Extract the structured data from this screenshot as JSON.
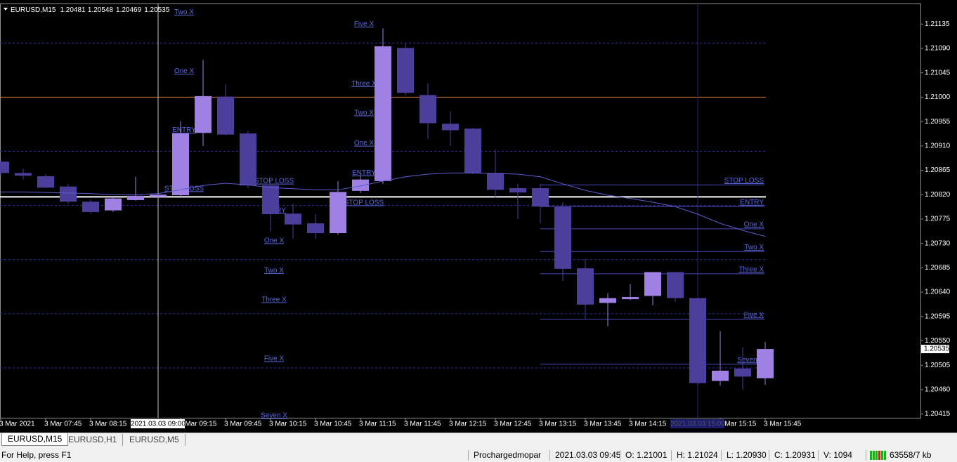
{
  "symbol": "EURUSD,M15",
  "chart_data": {
    "type": "candlestick",
    "categories": [
      "3 Mar 2021",
      null,
      "3 Mar 07:45",
      null,
      "3 Mar 08:15",
      null,
      null,
      "2021.03.03 09:00",
      "3 Mar 09:15",
      null,
      "3 Mar 09:45",
      null,
      "3 Mar 10:15",
      null,
      "3 Mar 10:45",
      null,
      "3 Mar 11:15",
      null,
      "3 Mar 11:45",
      null,
      "3 Mar 12:15",
      null,
      "3 Mar 12:45",
      null,
      "3 Mar 13:15",
      null,
      "3 Mar 13:45",
      null,
      "3 Mar 14:15",
      null,
      null,
      "2021.03.03 15:00",
      "3 Mar 15:15",
      null,
      "3 Mar 15:45"
    ],
    "open": [
      1.20881,
      1.2086,
      1.20854,
      1.20835,
      1.20807,
      1.20791,
      1.2081,
      1.20816,
      1.20819,
      1.20934,
      1.21001,
      1.20933,
      1.20837,
      1.20785,
      1.20767,
      1.20749,
      1.20827,
      1.20845,
      1.21091,
      1.21004,
      1.20951,
      1.20942,
      1.2086,
      1.20832,
      1.20832,
      1.20798,
      1.20684,
      1.2062,
      1.20627,
      1.20633,
      1.20677,
      1.20629,
      1.20476,
      1.20499,
      1.20481
    ],
    "high": [
      1.20884,
      1.20868,
      1.20858,
      1.2084,
      1.20811,
      1.20816,
      1.20853,
      1.20822,
      1.20956,
      1.21069,
      1.21024,
      1.20938,
      1.20848,
      1.20803,
      1.20784,
      1.20845,
      1.20855,
      1.21127,
      1.21099,
      1.21026,
      1.20974,
      1.20943,
      1.20904,
      1.2084,
      1.2084,
      1.20806,
      1.20702,
      1.20638,
      1.20655,
      1.20677,
      1.20677,
      1.20629,
      1.20568,
      1.20538,
      1.20548
    ],
    "low": [
      1.20855,
      1.20848,
      1.20832,
      1.20803,
      1.20785,
      1.20788,
      1.20809,
      1.20814,
      1.20816,
      1.2091,
      1.2093,
      1.20832,
      1.20752,
      1.20739,
      1.20739,
      1.20746,
      1.20823,
      1.2084,
      1.21003,
      1.20923,
      1.2091,
      1.20858,
      1.20814,
      1.20775,
      1.20767,
      1.20661,
      1.2059,
      1.20577,
      1.20625,
      1.20616,
      1.20622,
      1.20469,
      1.20467,
      1.2046,
      1.20469
    ],
    "close": [
      1.2086,
      1.20855,
      1.20833,
      1.20807,
      1.20788,
      1.20813,
      1.20818,
      1.2082,
      1.20933,
      1.21002,
      1.20931,
      1.20837,
      1.20784,
      1.20765,
      1.20749,
      1.20825,
      1.20848,
      1.21094,
      1.21008,
      1.20952,
      1.20939,
      1.2086,
      1.20829,
      1.20824,
      1.20798,
      1.20683,
      1.20617,
      1.20629,
      1.20631,
      1.20677,
      1.20629,
      1.20472,
      1.20495,
      1.20484,
      1.20535
    ],
    "up_color": "#9f80e3",
    "down_color": "#4c3f9c",
    "ma": [
      1.20825,
      1.20825,
      1.20824,
      1.20823,
      1.20822,
      1.2082,
      1.2082,
      1.20822,
      1.20829,
      1.20837,
      1.20841,
      1.20838,
      1.20833,
      1.20831,
      1.20829,
      1.20829,
      1.20836,
      1.20845,
      1.20853,
      1.20858,
      1.2086,
      1.2086,
      1.20859,
      1.20858,
      1.20853,
      1.2084,
      1.20828,
      1.20819,
      1.20813,
      1.20806,
      1.20798,
      1.20784,
      1.20767,
      1.20754,
      1.20743
    ],
    "ma_color": "#5c5ccc",
    "ylim": [
      1.20408,
      1.21173
    ],
    "yticks": [
      1.21135,
      {
        "value": 1.2109,
        "label": "1.21090"
      },
      1.21045,
      {
        "value": 1.21,
        "label": "1.21000"
      },
      1.20955,
      {
        "value": 1.2091,
        "label": "1.20910"
      },
      1.20865,
      {
        "value": 1.2082,
        "label": "1.20820"
      },
      1.20775,
      {
        "value": 1.2073,
        "label": "1.20730"
      },
      1.20685,
      {
        "value": 1.2064,
        "label": "1.20640"
      },
      1.20595,
      {
        "value": 1.2055,
        "label": "1.20550"
      },
      1.20505,
      {
        "value": 1.2046,
        "label": "1.20460"
      },
      1.20415
    ],
    "h_lines": [
      {
        "price": 1.211,
        "style": "dashed",
        "color": "#32328a"
      },
      {
        "price": 1.21,
        "style": "solid",
        "color": "#d0783a"
      },
      {
        "price": 1.209,
        "style": "dashed",
        "color": "#32328a"
      },
      {
        "price": 1.208,
        "style": "dashed",
        "color": "#32328a"
      },
      {
        "price": 1.207,
        "style": "dashed",
        "color": "#32328a"
      },
      {
        "price": 1.206,
        "style": "dashed",
        "color": "#32328a"
      },
      {
        "price": 1.205,
        "style": "dashed",
        "color": "#32328a"
      },
      {
        "price": 1.20816,
        "style": "thick",
        "color": "#ffffff"
      }
    ],
    "trade_levels": [
      {
        "label": "STOP LOSS",
        "price": 1.20838
      },
      {
        "label": "ENTRY",
        "price": 1.20798
      },
      {
        "label": "One X",
        "price": 1.20757
      },
      {
        "label": "Two X",
        "price": 1.20715
      },
      {
        "label": "Three X",
        "price": 1.20674
      },
      {
        "label": "Five X",
        "price": 1.2059
      },
      {
        "label": "Seven X",
        "price": 1.20507
      }
    ],
    "annotation_groups": [
      [
        {
          "text": "Two X",
          "price": 1.21157
        },
        {
          "text": "One X",
          "price": 1.21048
        },
        {
          "text": "ENTRY",
          "price": 1.20939
        },
        {
          "text": "STOP LOSS",
          "price": 1.20831
        }
      ],
      [
        {
          "text": "STOP LOSS",
          "price": 1.20845
        },
        {
          "text": "ENTRY",
          "price": 1.20791
        },
        {
          "text": "One X",
          "price": 1.20735
        },
        {
          "text": "Two X",
          "price": 1.2068
        },
        {
          "text": "Three X",
          "price": 1.20626
        },
        {
          "text": "Five X",
          "price": 1.20517
        },
        {
          "text": "Seven X",
          "price": 1.20412
        }
      ],
      [
        {
          "text": "Five X",
          "price": 1.21135
        },
        {
          "text": "Three X",
          "price": 1.21025
        },
        {
          "text": "Two X",
          "price": 1.20971
        },
        {
          "text": "One X",
          "price": 1.20915
        },
        {
          "text": "ENTRY",
          "price": 1.2086
        },
        {
          "text": "STOP LOSS",
          "price": 1.20805
        }
      ]
    ],
    "crosshairs": [
      7,
      31
    ]
  },
  "tabs": [
    "EURUSD,M15",
    "EURUSD,H1",
    "EURUSD,M5"
  ],
  "status_bar": {
    "help": "For Help, press F1",
    "account": "Prochargedmopar",
    "time": "2021.03.03 09:45",
    "open": "O: 1.21001",
    "high": "H: 1.21024",
    "low": "L: 1.20930",
    "close": "C: 1.20931",
    "volume": "V: 1094",
    "traffic": "63558/7 kb"
  }
}
